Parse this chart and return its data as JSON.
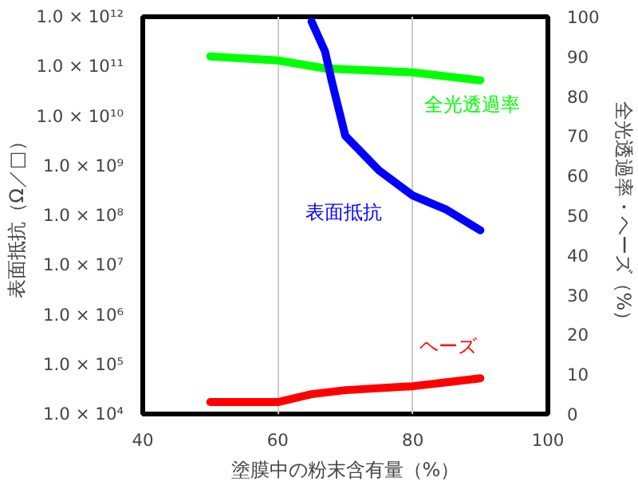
{
  "chart_data": {
    "type": "line",
    "xlabel": "塗膜中の粉末含有量（%）",
    "ylabel": "表面抵抗（Ω／□）",
    "y2label": "全光透過率・ヘーズ（%）",
    "log": "y",
    "grid": "x",
    "marker": "none",
    "line_style": "solid",
    "xlim": [
      40,
      100
    ],
    "xticks": [
      40,
      60,
      80,
      100
    ],
    "ylim": [
      10000,
      1000000000000
    ],
    "yticks": [
      {
        "value": 10000,
        "label": "1.0 × 10⁴"
      },
      {
        "value": 100000,
        "label": "1.0 × 10⁵"
      },
      {
        "value": 1000000,
        "label": "1.0 × 10⁶"
      },
      {
        "value": 10000000,
        "label": "1.0 × 10⁷"
      },
      {
        "value": 100000000,
        "label": "1.0 × 10⁸"
      },
      {
        "value": 1000000000,
        "label": "1.0 × 10⁹"
      },
      {
        "value": 10000000000,
        "label": "1.0 × 10¹⁰"
      },
      {
        "value": 100000000000,
        "label": "1.0 × 10¹¹"
      },
      {
        "value": 1000000000000,
        "label": "1.0 × 10¹²"
      }
    ],
    "y2lim": [
      0,
      100
    ],
    "y2ticks": [
      0,
      10,
      20,
      30,
      40,
      50,
      60,
      70,
      80,
      90,
      100
    ],
    "series": [
      {
        "name": "全光透過率",
        "color": "#00ff00",
        "axis": "y2",
        "x": [
          50,
          60,
          67,
          80,
          90
        ],
        "values": [
          90,
          89,
          87,
          86,
          84
        ]
      },
      {
        "name": "表面抵抗",
        "color": "#0000ff",
        "x": [
          65,
          67,
          68,
          70,
          75,
          80,
          85,
          90
        ],
        "values": [
          800000000000,
          200000000000,
          50000000000,
          4000000000,
          800000000,
          250000000,
          130000000,
          50000000
        ]
      },
      {
        "name": "ヘーズ",
        "color": "#ff0000",
        "axis": "y2",
        "x": [
          50,
          60,
          65,
          70,
          80,
          85,
          90
        ],
        "values": [
          3,
          3,
          5,
          6,
          7,
          8,
          9
        ]
      }
    ]
  }
}
